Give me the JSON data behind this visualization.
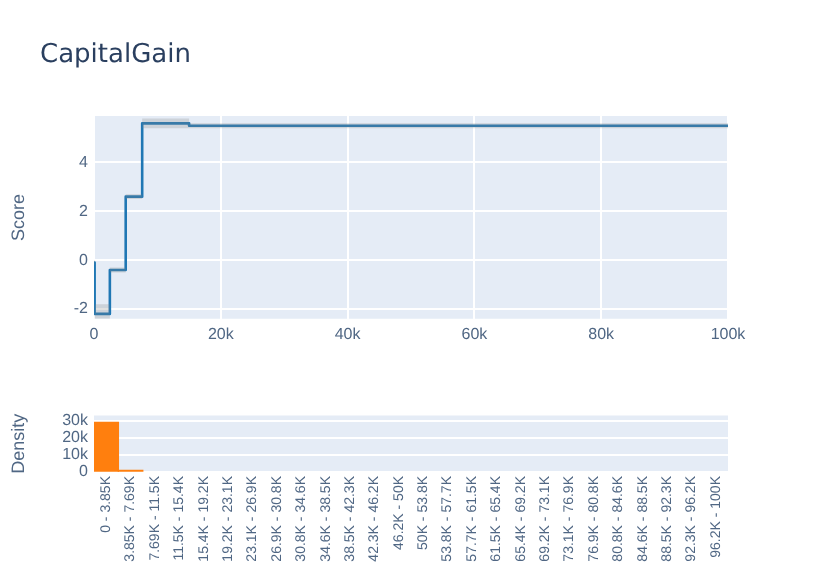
{
  "chart_data": [
    {
      "type": "step",
      "title": "CapitalGain",
      "ylabel": "Score",
      "x": [
        0,
        100,
        2500,
        5000,
        7600,
        15000,
        100000
      ],
      "series": [
        {
          "color": "#1f77b4",
          "values": [
            -0.1,
            -2.2,
            -0.4,
            2.6,
            5.6,
            5.5,
            5.5
          ],
          "lower": [
            -0.2,
            -2.4,
            -0.5,
            2.5,
            5.4,
            5.4,
            5.4
          ],
          "upper": [
            0,
            -1.8,
            -0.3,
            2.7,
            5.8,
            5.6,
            5.6
          ]
        }
      ],
      "xlim": [
        0,
        100000
      ],
      "xticks": [
        {
          "value": 0,
          "label": "0"
        },
        {
          "value": 20000,
          "label": "20k"
        },
        {
          "value": 40000,
          "label": "40k"
        },
        {
          "value": 60000,
          "label": "60k"
        },
        {
          "value": 80000,
          "label": "80k"
        },
        {
          "value": 100000,
          "label": "100k"
        }
      ],
      "ylim": [
        -2.4,
        5.9
      ],
      "yticks": [
        -2,
        0,
        2,
        4
      ],
      "grid": true
    },
    {
      "type": "bar",
      "ylabel": "Density",
      "categories": [
        "0 - 3.85K",
        "3.85K - 7.69K",
        "7.69K - 11.5K",
        "11.5K - 15.4K",
        "15.4K - 19.2K",
        "19.2K - 23.1K",
        "23.1K - 26.9K",
        "26.9K - 30.8K",
        "30.8K - 34.6K",
        "34.6K - 38.5K",
        "38.5K - 42.3K",
        "42.3K - 46.2K",
        "46.2K - 50K",
        "50K - 53.8K",
        "53.8K - 57.7K",
        "57.7K - 61.5K",
        "61.5K - 65.4K",
        "65.4K - 69.2K",
        "69.2K - 73.1K",
        "73.1K - 76.9K",
        "76.9K - 80.8K",
        "80.8K - 84.6K",
        "84.6K - 88.5K",
        "88.5K - 92.3K",
        "92.3K - 96.2K",
        "96.2K - 100K"
      ],
      "values": [
        29000,
        1000,
        null,
        null,
        null,
        null,
        null,
        null,
        null,
        null,
        null,
        null,
        null,
        null,
        null,
        null,
        null,
        null,
        null,
        null,
        null,
        null,
        null,
        null,
        null,
        null
      ],
      "color": "#ff7f0e",
      "ylim": [
        0,
        33000
      ],
      "yticks": [
        {
          "value": 0,
          "label": "0"
        },
        {
          "value": 10000,
          "label": "10k"
        },
        {
          "value": 20000,
          "label": "20k"
        },
        {
          "value": 30000,
          "label": "30k"
        }
      ],
      "grid": "y"
    }
  ]
}
